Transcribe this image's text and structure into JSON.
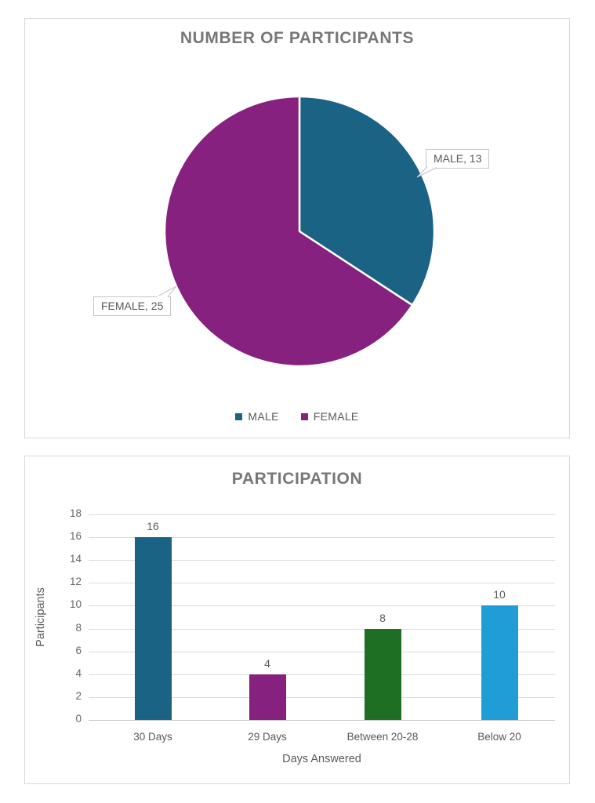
{
  "window": {
    "background": "#FFFFFF"
  },
  "colors": {
    "card_border": "#D9D9D9",
    "title_text": "#777777",
    "tick_text": "#666666",
    "label_text": "#595959",
    "gridline": "#DCDCDC",
    "axis_line": "#C3C3C3",
    "callout_border": "#C6C6C6",
    "callout_bg": "#FFFFFF",
    "male_teal": "#1B6385",
    "female_purple": "#87217F",
    "green": "#1E6F23",
    "light_blue": "#1F9ED5"
  },
  "chart_data": [
    {
      "type": "pie",
      "title": "NUMBER OF PARTICIPANTS",
      "labels": [
        "MALE",
        "FEMALE"
      ],
      "values": [
        13,
        25
      ],
      "colors": [
        "#1B6385",
        "#87217F"
      ],
      "start_angle_deg": 0,
      "direction": "clockwise",
      "data_labels": [
        "MALE, 13",
        "FEMALE, 25"
      ],
      "legend_position": "bottom",
      "legend": [
        "MALE",
        "FEMALE"
      ]
    },
    {
      "type": "bar",
      "title": "PARTICIPATION",
      "categories": [
        "30 Days",
        "29 Days",
        "Between 20-28",
        "Below 20"
      ],
      "values": [
        16,
        4,
        8,
        10
      ],
      "colors": [
        "#1B6385",
        "#87217F",
        "#1E6F23",
        "#1F9ED5"
      ],
      "xlabel": "Days Answered",
      "ylabel": "Participants",
      "ylim": [
        0,
        18
      ],
      "ytick_step": 2,
      "grid": true,
      "data_labels": true,
      "legend_position": "none"
    }
  ]
}
